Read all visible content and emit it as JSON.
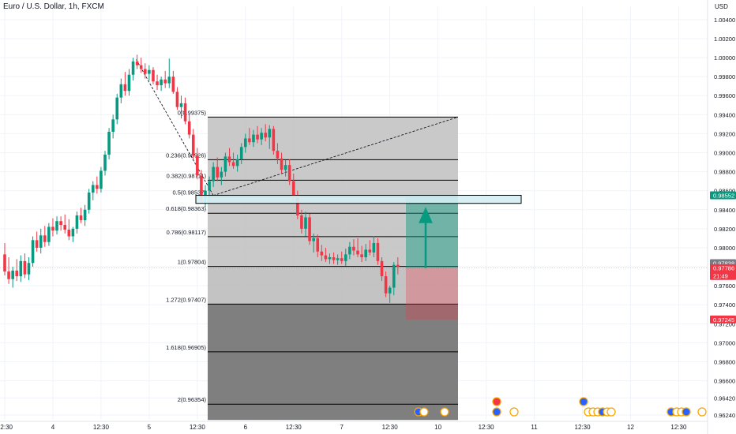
{
  "header": {
    "symbol_title": "Euro / U.S. Dollar, 1h, FXCM",
    "currency": "USD"
  },
  "chart_data": {
    "type": "candlestick",
    "instrument": "Euro / U.S. Dollar",
    "timeframe": "1h",
    "source": "FXCM",
    "ylim": [
      0.9619,
      1.0054
    ],
    "y_ticks": [
      "1.00400",
      "1.00200",
      "1.00000",
      "0.99800",
      "0.99600",
      "0.99400",
      "0.99200",
      "0.99000",
      "0.98800",
      "0.98600",
      "0.98400",
      "0.98200",
      "0.98000",
      "0.97800",
      "0.97600",
      "0.97400",
      "0.97200",
      "0.97000",
      "0.96800",
      "0.96600",
      "0.96420",
      "0.96240"
    ],
    "x_ticks": [
      {
        "label": "12:30",
        "i": 0
      },
      {
        "label": "4",
        "i": 12
      },
      {
        "label": "12:30",
        "i": 24
      },
      {
        "label": "5",
        "i": 36
      },
      {
        "label": "12:30",
        "i": 48
      },
      {
        "label": "6",
        "i": 60
      },
      {
        "label": "12:30",
        "i": 72
      },
      {
        "label": "7",
        "i": 84
      },
      {
        "label": "12:30",
        "i": 96
      },
      {
        "label": "10",
        "i": 108
      },
      {
        "label": "12:30",
        "i": 120
      },
      {
        "label": "11",
        "i": 132
      },
      {
        "label": "12:30",
        "i": 144
      },
      {
        "label": "12",
        "i": 156
      },
      {
        "label": "12:30",
        "i": 168
      }
    ],
    "candles": [
      [
        0.9793,
        0.9805,
        0.9771,
        0.9775
      ],
      [
        0.9775,
        0.979,
        0.9762,
        0.9767
      ],
      [
        0.9767,
        0.978,
        0.9758,
        0.9776
      ],
      [
        0.9776,
        0.9788,
        0.9765,
        0.977
      ],
      [
        0.977,
        0.9792,
        0.9764,
        0.9786
      ],
      [
        0.9786,
        0.9794,
        0.9768,
        0.9772
      ],
      [
        0.9772,
        0.979,
        0.9766,
        0.9784
      ],
      [
        0.9784,
        0.9812,
        0.978,
        0.9808
      ],
      [
        0.9808,
        0.9817,
        0.9796,
        0.98
      ],
      [
        0.98,
        0.982,
        0.9794,
        0.9813
      ],
      [
        0.9813,
        0.9823,
        0.9801,
        0.9806
      ],
      [
        0.9806,
        0.9826,
        0.9802,
        0.9822
      ],
      [
        0.9822,
        0.9831,
        0.9812,
        0.9818
      ],
      [
        0.9818,
        0.9833,
        0.9814,
        0.9828
      ],
      [
        0.9828,
        0.9833,
        0.9818,
        0.9824
      ],
      [
        0.9824,
        0.9835,
        0.9815,
        0.9819
      ],
      [
        0.9819,
        0.983,
        0.9808,
        0.9812
      ],
      [
        0.9812,
        0.9822,
        0.9806,
        0.982
      ],
      [
        0.982,
        0.9838,
        0.9815,
        0.9834
      ],
      [
        0.9834,
        0.9842,
        0.9826,
        0.9829
      ],
      [
        0.9829,
        0.9845,
        0.9823,
        0.984
      ],
      [
        0.984,
        0.9862,
        0.9836,
        0.9858
      ],
      [
        0.9858,
        0.987,
        0.985,
        0.9866
      ],
      [
        0.9866,
        0.9875,
        0.9857,
        0.9862
      ],
      [
        0.9862,
        0.9885,
        0.9858,
        0.9881
      ],
      [
        0.9881,
        0.9902,
        0.9876,
        0.9898
      ],
      [
        0.9898,
        0.9926,
        0.9893,
        0.9922
      ],
      [
        0.9922,
        0.994,
        0.9915,
        0.9935
      ],
      [
        0.9935,
        0.9962,
        0.993,
        0.9958
      ],
      [
        0.9958,
        0.9978,
        0.9952,
        0.9972
      ],
      [
        0.9972,
        0.9985,
        0.996,
        0.9965
      ],
      [
        0.9965,
        0.9988,
        0.996,
        0.9982
      ],
      [
        0.9982,
        1.0,
        0.9976,
        0.9996
      ],
      [
        0.9996,
        1.0003,
        0.9988,
        0.9992
      ],
      [
        0.9992,
        1.0,
        0.9984,
        0.9988
      ],
      [
        0.9988,
        0.9994,
        0.9978,
        0.9983
      ],
      [
        0.9983,
        0.9992,
        0.9976,
        0.9987
      ],
      [
        0.9987,
        0.999,
        0.9972,
        0.9975
      ],
      [
        0.9975,
        0.9982,
        0.9966,
        0.9971
      ],
      [
        0.9971,
        0.998,
        0.9965,
        0.9977
      ],
      [
        0.9977,
        0.9986,
        0.9968,
        0.9973
      ],
      [
        0.9973,
        0.9999,
        0.9968,
        0.998
      ],
      [
        0.998,
        0.9986,
        0.9962,
        0.9964
      ],
      [
        0.9964,
        0.9969,
        0.9945,
        0.9948
      ],
      [
        0.9948,
        0.996,
        0.9936,
        0.9952
      ],
      [
        0.9952,
        0.9958,
        0.993,
        0.9933
      ],
      [
        0.9933,
        0.994,
        0.9915,
        0.9919
      ],
      [
        0.9919,
        0.9925,
        0.9893,
        0.9897
      ],
      [
        0.9897,
        0.9905,
        0.9872,
        0.9876
      ],
      [
        0.9876,
        0.9882,
        0.9849,
        0.9853
      ],
      [
        0.9853,
        0.9866,
        0.9843,
        0.986
      ],
      [
        0.986,
        0.9875,
        0.9852,
        0.987
      ],
      [
        0.987,
        0.989,
        0.9864,
        0.9885
      ],
      [
        0.9885,
        0.9895,
        0.987,
        0.9874
      ],
      [
        0.9874,
        0.9885,
        0.9866,
        0.988
      ],
      [
        0.988,
        0.99,
        0.9875,
        0.9896
      ],
      [
        0.9896,
        0.9905,
        0.9886,
        0.989
      ],
      [
        0.989,
        0.99,
        0.9883,
        0.9886
      ],
      [
        0.9886,
        0.9898,
        0.988,
        0.9893
      ],
      [
        0.9893,
        0.991,
        0.9888,
        0.9906
      ],
      [
        0.9906,
        0.992,
        0.99,
        0.9915
      ],
      [
        0.9915,
        0.9926,
        0.9908,
        0.9911
      ],
      [
        0.9911,
        0.9924,
        0.9906,
        0.9919
      ],
      [
        0.9919,
        0.9928,
        0.991,
        0.9914
      ],
      [
        0.9914,
        0.9926,
        0.9908,
        0.9921
      ],
      [
        0.9921,
        0.993,
        0.9912,
        0.9916
      ],
      [
        0.9916,
        0.9929,
        0.9904,
        0.9925
      ],
      [
        0.9925,
        0.9928,
        0.9898,
        0.9902
      ],
      [
        0.9902,
        0.991,
        0.9888,
        0.9894
      ],
      [
        0.9894,
        0.99,
        0.9878,
        0.9882
      ],
      [
        0.9882,
        0.9892,
        0.9875,
        0.9887
      ],
      [
        0.9887,
        0.9893,
        0.9866,
        0.987
      ],
      [
        0.987,
        0.9878,
        0.985,
        0.9855
      ],
      [
        0.9855,
        0.986,
        0.983,
        0.9834
      ],
      [
        0.9834,
        0.984,
        0.9815,
        0.982
      ],
      [
        0.982,
        0.9838,
        0.9812,
        0.9832
      ],
      [
        0.9832,
        0.9836,
        0.9803,
        0.9807
      ],
      [
        0.9807,
        0.9815,
        0.9795,
        0.981
      ],
      [
        0.981,
        0.9814,
        0.979,
        0.9796
      ],
      [
        0.9796,
        0.9803,
        0.9786,
        0.9792
      ],
      [
        0.9792,
        0.98,
        0.9785,
        0.9788
      ],
      [
        0.9788,
        0.9794,
        0.9783,
        0.979
      ],
      [
        0.979,
        0.9795,
        0.9783,
        0.9787
      ],
      [
        0.9787,
        0.9793,
        0.9782,
        0.9789
      ],
      [
        0.9789,
        0.9796,
        0.9783,
        0.9786
      ],
      [
        0.9786,
        0.9799,
        0.9781,
        0.9793
      ],
      [
        0.9793,
        0.9806,
        0.9788,
        0.9801
      ],
      [
        0.9801,
        0.9809,
        0.9792,
        0.9797
      ],
      [
        0.9797,
        0.981,
        0.979,
        0.9793
      ],
      [
        0.9793,
        0.9802,
        0.9785,
        0.979
      ],
      [
        0.979,
        0.9804,
        0.9786,
        0.9798
      ],
      [
        0.9798,
        0.9808,
        0.9792,
        0.9795
      ],
      [
        0.9795,
        0.9812,
        0.979,
        0.9805
      ],
      [
        0.9805,
        0.981,
        0.9782,
        0.9786
      ],
      [
        0.9786,
        0.979,
        0.9765,
        0.977
      ],
      [
        0.977,
        0.9775,
        0.9748,
        0.9752
      ],
      [
        0.9752,
        0.976,
        0.9742,
        0.9758
      ],
      [
        0.9758,
        0.9785,
        0.975,
        0.9782
      ],
      [
        0.9782,
        0.979,
        0.9772,
        0.978
      ]
    ],
    "fibonacci": {
      "levels": [
        {
          "label": "0(0.99375)",
          "value": 0.99375
        },
        {
          "label": "0.236(0.98926)",
          "value": 0.98926
        },
        {
          "label": "0.382(0.98711)",
          "value": 0.98711
        },
        {
          "label": "0.5(0.98537)",
          "value": 0.98537
        },
        {
          "label": "0.618(0.98363)",
          "value": 0.98363
        },
        {
          "label": "0.786(0.98117)",
          "value": 0.98117
        },
        {
          "label": "1(0.97804)",
          "value": 0.97804
        },
        {
          "label": "1.272(0.97407)",
          "value": 0.97407
        },
        {
          "label": "1.618(0.96905)",
          "value": 0.96905
        },
        {
          "label": "2(0.96354)",
          "value": 0.96354
        }
      ]
    },
    "price_labels": {
      "target": {
        "text": "0.98552",
        "value": 0.98552,
        "color": "#089981"
      },
      "last_close": {
        "text": "0.97838",
        "value": 0.97838,
        "color": "#787b86"
      },
      "current": {
        "text": "0.97786",
        "value": 0.97786,
        "color": "#f23645"
      },
      "countdown": "21:49",
      "stop": {
        "text": "0.97245",
        "value": 0.97245,
        "color": "#f23645"
      }
    },
    "position_tool": {
      "entry": 0.97786,
      "target": 0.98552,
      "stop": 0.97245,
      "direction": "long"
    },
    "zone": {
      "top": 0.98552,
      "bottom": 0.985
    },
    "colors": {
      "up": "#089981",
      "down": "#f23645",
      "fib_light": "#bfbfbf",
      "fib_dark": "#787878"
    }
  }
}
